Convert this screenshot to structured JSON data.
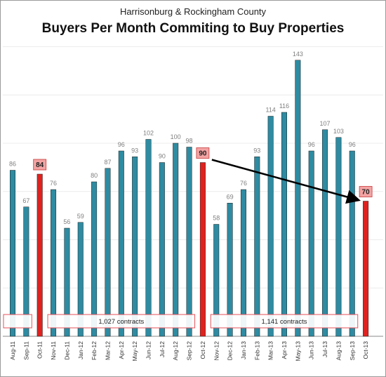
{
  "header": {
    "subtitle": "Harrisonburg & Rockingham County",
    "title": "Buyers Per Month Commiting to Buy Properties"
  },
  "chart_data": {
    "type": "bar",
    "title": "Buyers Per Month Commiting to Buy Properties",
    "subtitle": "Harrisonburg & Rockingham County",
    "categories": [
      "Aug-11",
      "Sep-11",
      "Oct-11",
      "Nov-11",
      "Dec-11",
      "Jan-12",
      "Feb-12",
      "Mar-12",
      "Apr-12",
      "May-12",
      "Jun-12",
      "Jul-12",
      "Aug-12",
      "Sep-12",
      "Oct-12",
      "Nov-12",
      "Dec-12",
      "Jan-13",
      "Feb-13",
      "Mar-13",
      "Apr-13",
      "May-13",
      "Jun-13",
      "Jul-13",
      "Aug-13",
      "Sep-13",
      "Oct-13"
    ],
    "values": [
      86,
      67,
      84,
      76,
      56,
      59,
      80,
      87,
      96,
      93,
      102,
      90,
      100,
      98,
      90,
      58,
      69,
      76,
      93,
      114,
      116,
      143,
      96,
      107,
      103,
      96,
      70
    ],
    "highlighted": [
      "Oct-11",
      "Oct-12",
      "Oct-13"
    ],
    "ylim": [
      0,
      150
    ],
    "grid": true,
    "colors": {
      "bar": "#2e8ba1",
      "highlight": "#e0221f",
      "label_box": "#f3a3a3",
      "annotation_border": "#e6525a"
    },
    "annotations": [
      {
        "text": "",
        "from": "Aug-11",
        "to": "Sep-11"
      },
      {
        "text": "1,027 contracts",
        "from": "Nov-11",
        "to": "Sep-12"
      },
      {
        "text": "1,141 contracts",
        "from": "Nov-12",
        "to": "Sep-13"
      }
    ],
    "trend_arrow": {
      "from": "Oct-12",
      "to": "Oct-13"
    }
  }
}
